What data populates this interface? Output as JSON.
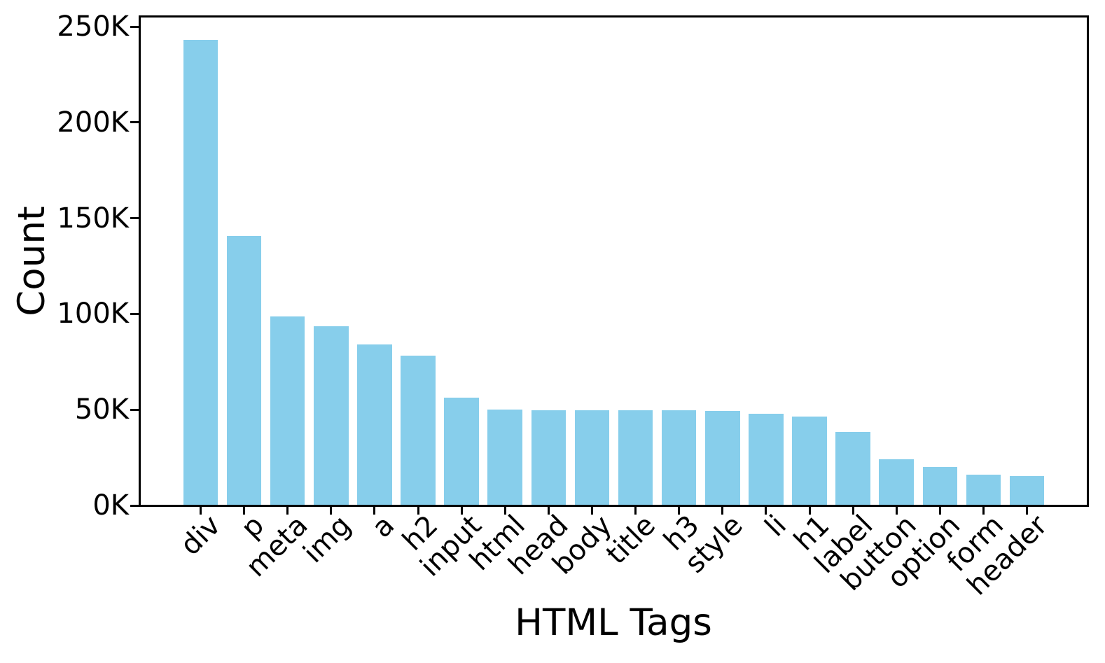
{
  "chart_data": {
    "type": "bar",
    "title": "",
    "xlabel": "HTML Tags",
    "ylabel": "Count",
    "categories": [
      "div",
      "p",
      "meta",
      "img",
      "a",
      "h2",
      "input",
      "html",
      "head",
      "body",
      "title",
      "h3",
      "style",
      "li",
      "h1",
      "label",
      "button",
      "option",
      "form",
      "header"
    ],
    "values": [
      243000,
      140700,
      98700,
      93500,
      84100,
      78200,
      56300,
      50000,
      49900,
      49900,
      49800,
      49600,
      49300,
      47900,
      46400,
      38400,
      24100,
      20100,
      16100,
      15400
    ],
    "yticks": [
      0,
      50000,
      100000,
      150000,
      200000,
      250000
    ],
    "ytick_labels": [
      "0K",
      "50K",
      "100K",
      "150K",
      "200K",
      "250K"
    ],
    "ylim": [
      0,
      255150
    ],
    "grid": false,
    "legend": null,
    "bar_color": "#87CEEB",
    "axis_color": "#000000",
    "text_color": "#000000"
  }
}
